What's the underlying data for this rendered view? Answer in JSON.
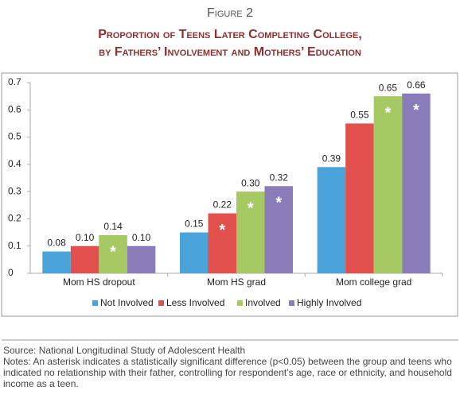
{
  "chart_data": {
    "type": "bar",
    "title": "Figure 2",
    "subtitle": [
      "Proportion of Teens Later Completing College,",
      "by Fathers’ Involvement and Mothers’ Education"
    ],
    "categories": [
      "Mom HS dropout",
      "Mom HS grad",
      "Mom college grad"
    ],
    "series": [
      {
        "name": "Not Involved",
        "color": "#4aa3d9",
        "values": [
          0.08,
          0.15,
          0.39
        ],
        "value_labels": [
          "0.08",
          "0.15",
          "0.39"
        ],
        "significant": [
          false,
          false,
          false
        ]
      },
      {
        "name": "Less Involved",
        "color": "#e1504c",
        "values": [
          0.1,
          0.22,
          0.55
        ],
        "value_labels": [
          "0.10",
          "0.22",
          "0.55"
        ],
        "significant": [
          false,
          true,
          false
        ]
      },
      {
        "name": "Involved",
        "color": "#a6c964",
        "values": [
          0.14,
          0.3,
          0.65
        ],
        "value_labels": [
          "0.14",
          "0.30",
          "0.65"
        ],
        "significant": [
          true,
          true,
          true
        ]
      },
      {
        "name": "Highly Involved",
        "color": "#8a7bb9",
        "values": [
          0.1,
          0.32,
          0.66
        ],
        "value_labels": [
          "0.10",
          "0.32",
          "0.66"
        ],
        "significant": [
          false,
          true,
          true
        ]
      }
    ],
    "asterisk": "*",
    "ylim": [
      0,
      0.7
    ],
    "yticks": [
      0,
      0.1,
      0.2,
      0.3,
      0.4,
      0.5,
      0.6,
      0.7
    ],
    "grid": false,
    "legend": "bottom",
    "source": "Source: National Longitudinal Study of Adolescent Health",
    "notes": "Notes: An asterisk indicates a statistically significant difference (p<0.05) between the group and teens who indicated no relationship with their father, controlling for respondent’s age, race or ethnicity, and household income as a teen."
  }
}
